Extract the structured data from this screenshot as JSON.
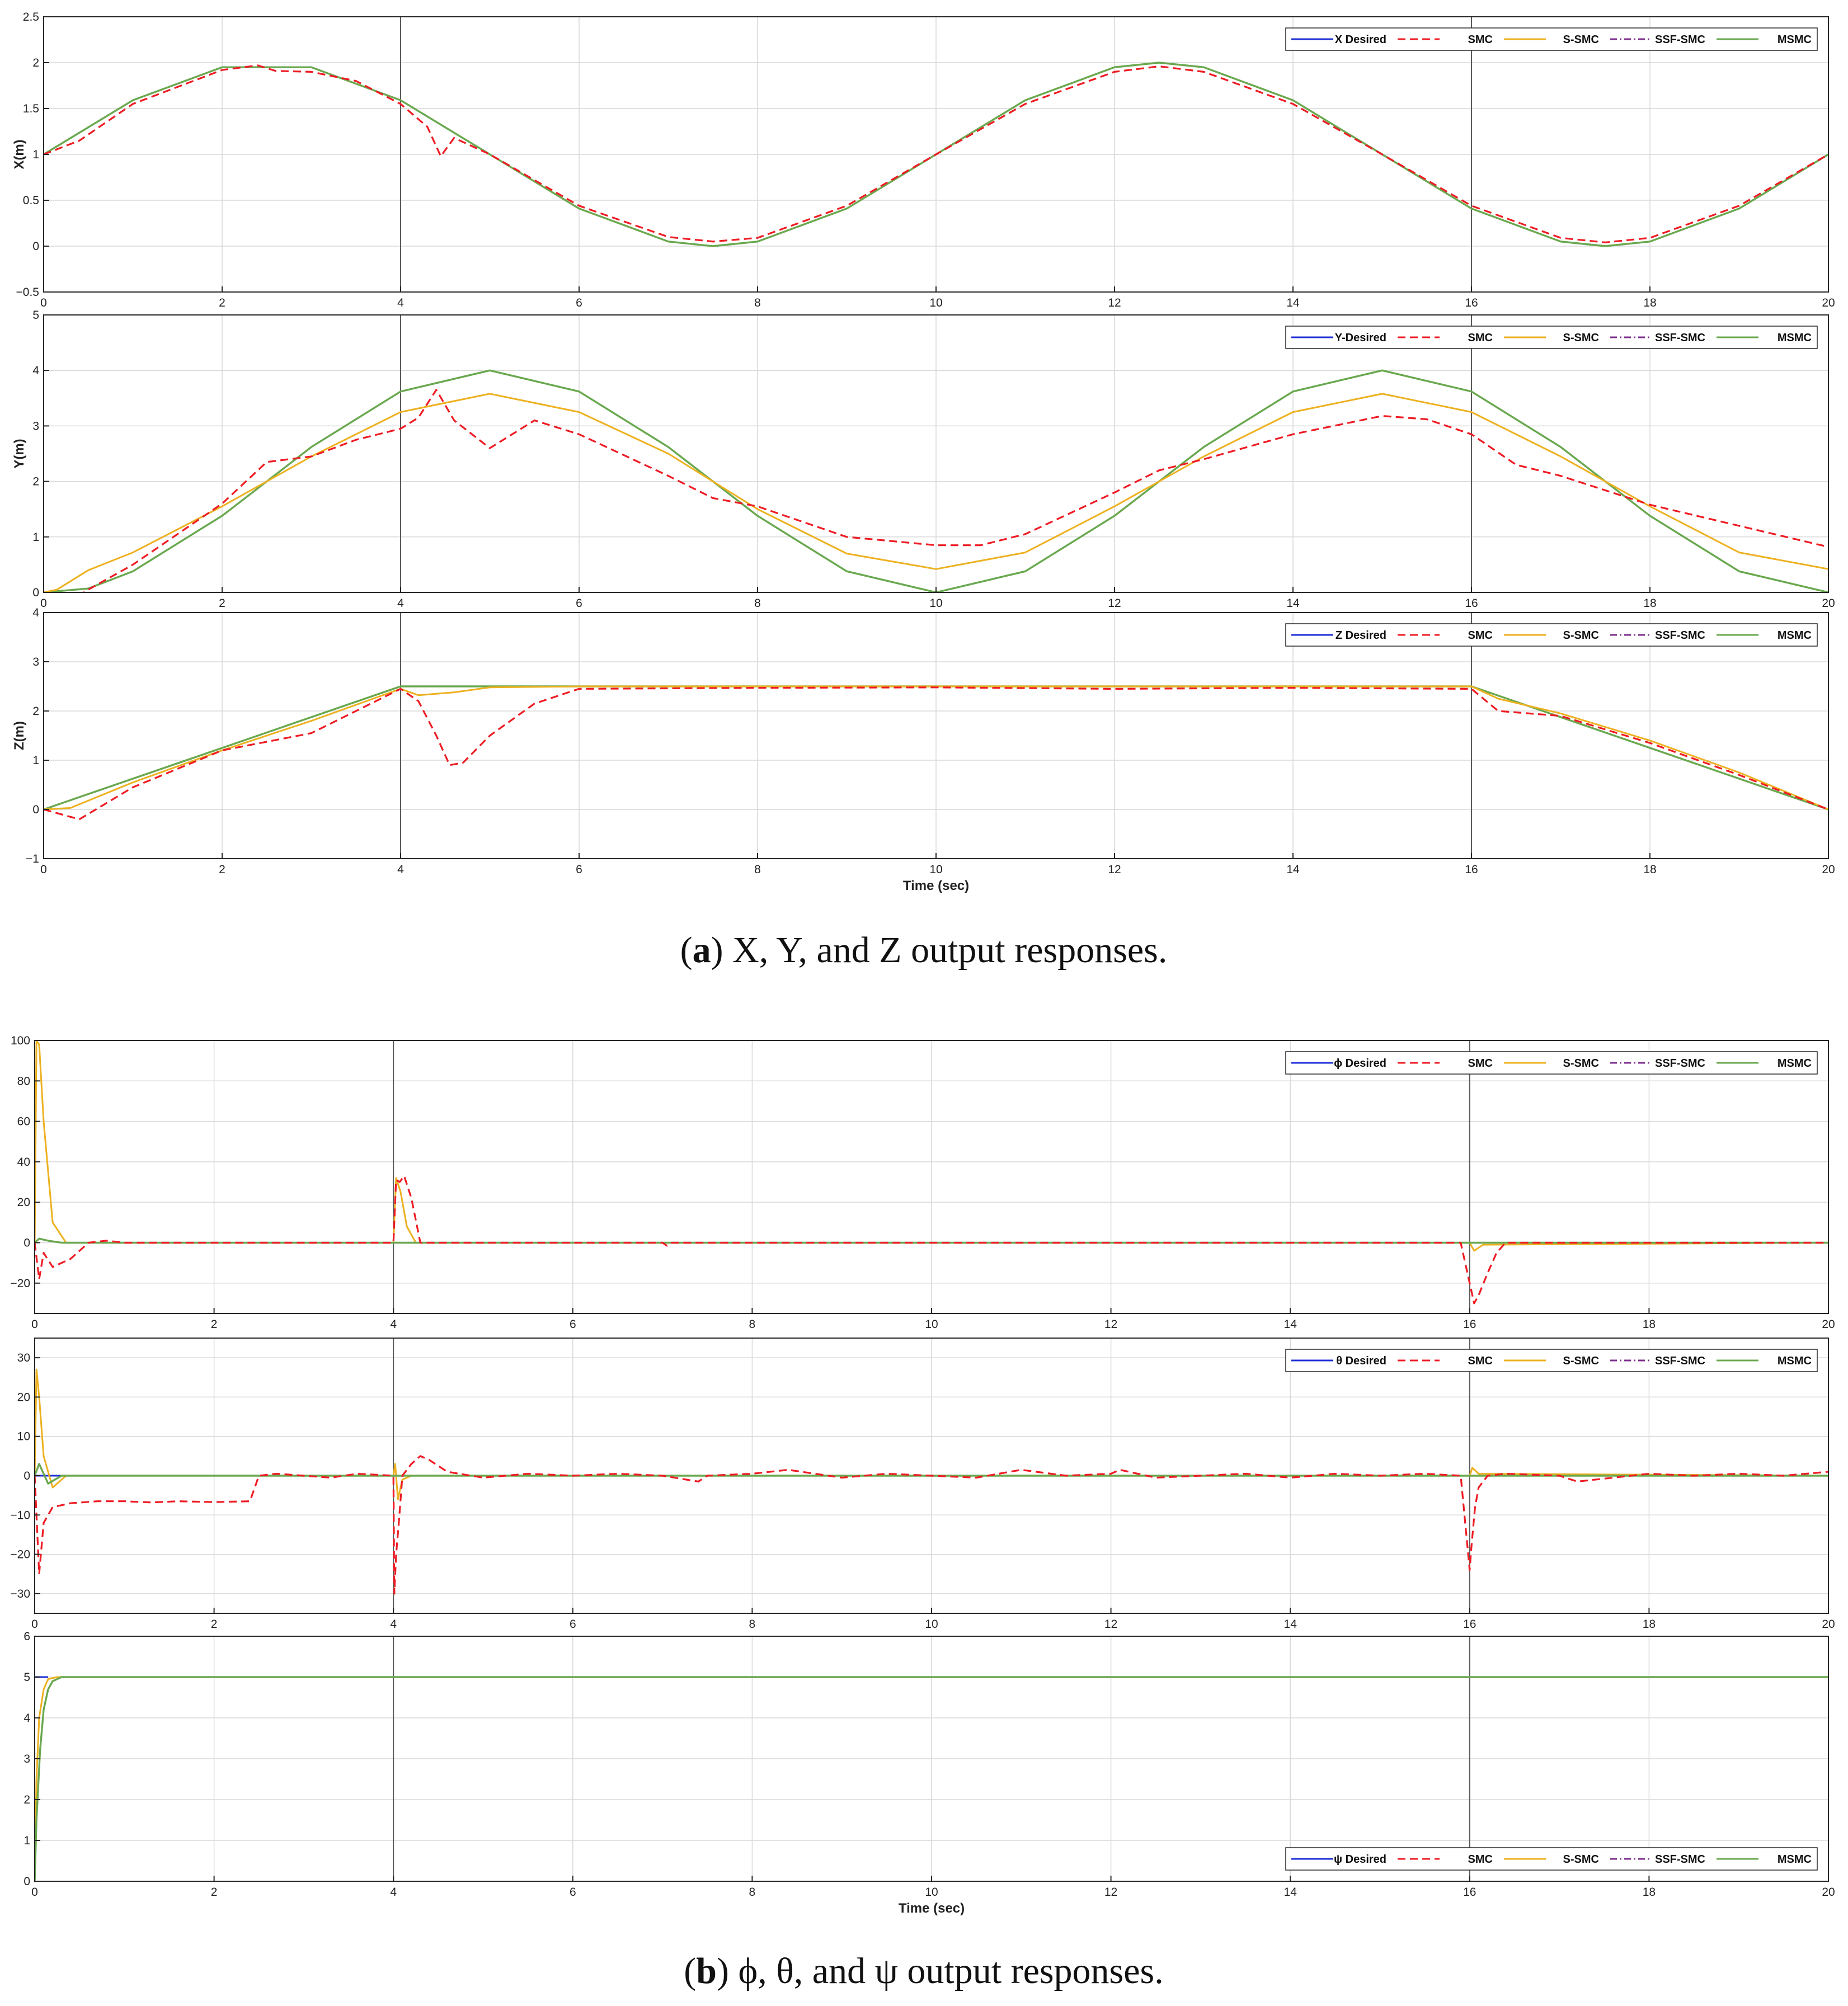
{
  "captions": {
    "a": {
      "letter": "a",
      "text": "X, Y, and Z output responses."
    },
    "b": {
      "letter": "b",
      "text": "ϕ, θ, and ψ output responses."
    }
  },
  "colors": {
    "desired": "#1f2fd6",
    "smc": "#ee1c24",
    "s_smc": "#edb120",
    "ssf_smc": "#7e2f8e",
    "msmc": "#6aa84f"
  },
  "chart_data": [
    {
      "type": "line",
      "id": "x",
      "ylabel": "X(m)",
      "xlabel": "",
      "xlim": [
        0,
        20
      ],
      "ylim": [
        -0.5,
        2.5
      ],
      "xticks": [
        0,
        2,
        4,
        6,
        8,
        10,
        12,
        14,
        16,
        18,
        20
      ],
      "yticks": [
        -0.5,
        0,
        0.5,
        1,
        1.5,
        2,
        2.5
      ],
      "ytick_labels": [
        "−0.5",
        "0",
        "0.5",
        "1",
        "1.5",
        "2",
        "2.5"
      ],
      "legend": [
        "X Desired",
        "SMC",
        "S-SMC",
        "SSF-SMC",
        "MSMC"
      ],
      "legend_position": "top-right",
      "grid": true,
      "series": [
        {
          "key": "msmc",
          "x": [
            0,
            1,
            2,
            3,
            4,
            5,
            6,
            7,
            7.5,
            8,
            9,
            10,
            11,
            12,
            12.5,
            13,
            14,
            15,
            16,
            17,
            17.5,
            18,
            19,
            20
          ],
          "y": [
            1,
            1.59,
            1.95,
            1.95,
            1.59,
            1,
            0.41,
            0.05,
            0,
            0.05,
            0.41,
            1,
            1.59,
            1.95,
            2,
            1.95,
            1.59,
            1,
            0.41,
            0.05,
            0,
            0.05,
            0.41,
            1
          ]
        },
        {
          "key": "smc",
          "x": [
            0,
            0.4,
            1,
            2,
            2.4,
            2.6,
            3,
            3.5,
            4,
            4.3,
            4.45,
            4.6,
            5,
            6,
            7,
            7.5,
            8,
            9,
            10,
            11,
            12,
            12.5,
            13,
            14,
            15,
            16,
            17,
            17.5,
            18,
            19,
            20
          ],
          "y": [
            1,
            1.15,
            1.55,
            1.92,
            1.97,
            1.91,
            1.9,
            1.8,
            1.55,
            1.3,
            0.98,
            1.18,
            1,
            0.44,
            0.1,
            0.05,
            0.09,
            0.44,
            1,
            1.55,
            1.9,
            1.96,
            1.9,
            1.55,
            1,
            0.44,
            0.09,
            0.04,
            0.09,
            0.44,
            1
          ]
        }
      ]
    },
    {
      "type": "line",
      "id": "y",
      "ylabel": "Y(m)",
      "xlabel": "",
      "xlim": [
        0,
        20
      ],
      "ylim": [
        0,
        5
      ],
      "xticks": [
        0,
        2,
        4,
        6,
        8,
        10,
        12,
        14,
        16,
        18,
        20
      ],
      "yticks": [
        0,
        1,
        2,
        3,
        4,
        5
      ],
      "ytick_labels": [
        "0",
        "1",
        "2",
        "3",
        "4",
        "5"
      ],
      "legend": [
        "Y-Desired",
        "SMC",
        "S-SMC",
        "SSF-SMC",
        "MSMC"
      ],
      "legend_position": "top-right",
      "grid": true,
      "series": [
        {
          "key": "msmc",
          "x": [
            0,
            0.5,
            1,
            2,
            3,
            4,
            5,
            6,
            7,
            8,
            9,
            10,
            11,
            12,
            13,
            14,
            15,
            16,
            17,
            18,
            19,
            20
          ],
          "y": [
            0,
            0.07,
            0.38,
            1.38,
            2.62,
            3.62,
            4,
            3.62,
            2.62,
            1.38,
            0.38,
            0,
            0.38,
            1.38,
            2.62,
            3.62,
            4,
            3.62,
            2.62,
            1.38,
            0.38,
            0
          ]
        },
        {
          "key": "s_smc",
          "x": [
            0,
            0.15,
            0.5,
            1,
            2,
            3,
            4,
            5,
            6,
            7,
            8,
            9,
            10,
            11,
            12,
            13,
            14,
            15,
            16,
            17,
            18,
            19,
            20
          ],
          "y": [
            0,
            0.05,
            0.4,
            0.72,
            1.55,
            2.45,
            3.25,
            3.58,
            3.25,
            2.5,
            1.5,
            0.7,
            0.42,
            0.72,
            1.55,
            2.45,
            3.25,
            3.58,
            3.25,
            2.45,
            1.55,
            0.72,
            0.42
          ]
        },
        {
          "key": "smc",
          "x": [
            0,
            0.3,
            0.5,
            1,
            2,
            2.5,
            3,
            3.5,
            4,
            4.2,
            4.4,
            4.6,
            5,
            5.5,
            6,
            7,
            7.5,
            8,
            9,
            10,
            10.5,
            11,
            12,
            12.5,
            13,
            14,
            15,
            15.5,
            16,
            16.5,
            17,
            18,
            19,
            20
          ],
          "y": [
            0,
            -0.15,
            0.05,
            0.5,
            1.6,
            2.35,
            2.45,
            2.75,
            2.95,
            3.15,
            3.65,
            3.1,
            2.6,
            3.1,
            2.85,
            2.1,
            1.7,
            1.55,
            1.0,
            0.85,
            0.85,
            1.05,
            1.8,
            2.2,
            2.4,
            2.85,
            3.18,
            3.12,
            2.85,
            2.3,
            2.1,
            1.58,
            1.2,
            0.82
          ]
        }
      ]
    },
    {
      "type": "line",
      "id": "z",
      "ylabel": "Z(m)",
      "xlabel": "Time (sec)",
      "xlim": [
        0,
        20
      ],
      "ylim": [
        -1,
        4
      ],
      "xticks": [
        0,
        2,
        4,
        6,
        8,
        10,
        12,
        14,
        16,
        18,
        20
      ],
      "yticks": [
        -1,
        0,
        1,
        2,
        3,
        4
      ],
      "ytick_labels": [
        "−1",
        "0",
        "1",
        "2",
        "3",
        "4"
      ],
      "legend": [
        "Z Desired",
        "SMC",
        "S-SMC",
        "SSF-SMC",
        "MSMC"
      ],
      "legend_position": "top-right",
      "grid": true,
      "series": [
        {
          "key": "msmc",
          "x": [
            0,
            4,
            16,
            20
          ],
          "y": [
            0,
            2.5,
            2.5,
            0
          ]
        },
        {
          "key": "s_smc",
          "x": [
            0,
            0.3,
            1,
            2,
            3,
            4,
            4.2,
            4.6,
            5,
            6,
            16,
            16.3,
            17,
            18,
            19,
            20
          ],
          "y": [
            0,
            0.03,
            0.55,
            1.2,
            1.8,
            2.45,
            2.32,
            2.38,
            2.48,
            2.5,
            2.5,
            2.25,
            1.95,
            1.4,
            0.75,
            0
          ]
        },
        {
          "key": "smc",
          "x": [
            0,
            0.4,
            1,
            2,
            3,
            4,
            4.2,
            4.4,
            4.55,
            4.7,
            5,
            5.5,
            6,
            8,
            10,
            12,
            14,
            16,
            16.3,
            17,
            18,
            19,
            20
          ],
          "y": [
            0,
            -0.2,
            0.45,
            1.2,
            1.55,
            2.45,
            2.2,
            1.5,
            0.9,
            0.95,
            1.5,
            2.15,
            2.45,
            2.47,
            2.48,
            2.45,
            2.47,
            2.45,
            2.0,
            1.9,
            1.35,
            0.7,
            0
          ]
        }
      ]
    },
    {
      "type": "line",
      "id": "phi",
      "ylabel": "",
      "xlabel": "",
      "xlim": [
        0,
        20
      ],
      "ylim": [
        -35,
        100
      ],
      "xticks": [
        0,
        2,
        4,
        6,
        8,
        10,
        12,
        14,
        16,
        18,
        20
      ],
      "yticks": [
        -20,
        0,
        20,
        40,
        60,
        80,
        100
      ],
      "ytick_labels": [
        "−20",
        "0",
        "20",
        "40",
        "60",
        "80",
        "100"
      ],
      "legend": [
        "ϕ Desired",
        "SMC",
        "S-SMC",
        "SSF-SMC",
        "MSMC"
      ],
      "legend_position": "top-right",
      "grid": true,
      "series": [
        {
          "key": "s_smc",
          "x": [
            0,
            0.02,
            0.05,
            0.1,
            0.2,
            0.35,
            4,
            4.03,
            4.08,
            4.15,
            4.25,
            16,
            16.05,
            16.15,
            20
          ],
          "y": [
            0,
            100,
            98,
            60,
            10,
            0,
            0,
            32,
            25,
            8,
            0,
            0,
            -4,
            -1,
            0
          ]
        },
        {
          "key": "msmc",
          "x": [
            0,
            0.05,
            0.15,
            0.3,
            20
          ],
          "y": [
            0,
            2,
            1,
            0,
            0
          ]
        },
        {
          "key": "smc",
          "x": [
            0,
            0.05,
            0.1,
            0.2,
            0.4,
            0.6,
            0.8,
            1,
            2,
            4,
            4.03,
            4.07,
            4.12,
            4.2,
            4.3,
            4.5,
            7,
            7.05,
            7.1,
            11,
            15.9,
            16,
            16.05,
            16.1,
            16.2,
            16.3,
            16.4,
            20
          ],
          "y": [
            0,
            -18,
            -5,
            -12,
            -8,
            0,
            1,
            0,
            0,
            0,
            31,
            30,
            33,
            22,
            0,
            0,
            0,
            -1.5,
            0,
            0,
            0,
            -20,
            -30,
            -26,
            -15,
            -5,
            0,
            0
          ]
        }
      ]
    },
    {
      "type": "line",
      "id": "theta",
      "ylabel": "",
      "xlabel": "",
      "xlim": [
        0,
        20
      ],
      "ylim": [
        -35,
        35
      ],
      "xticks": [
        0,
        2,
        4,
        6,
        8,
        10,
        12,
        14,
        16,
        18,
        20
      ],
      "yticks": [
        -30,
        -20,
        -10,
        0,
        10,
        20,
        30
      ],
      "ytick_labels": [
        "−30",
        "−20",
        "−10",
        "0",
        "10",
        "20",
        "30"
      ],
      "legend": [
        "θ Desired",
        "SMC",
        "S-SMC",
        "SSF-SMC",
        "MSMC"
      ],
      "legend_position": "top-right",
      "grid": true,
      "series": [
        {
          "key": "desired",
          "x": [
            0,
            20
          ],
          "y": [
            0,
            0
          ]
        },
        {
          "key": "s_smc",
          "x": [
            0,
            0.02,
            0.05,
            0.1,
            0.2,
            0.35,
            4,
            4.02,
            4.05,
            4.1,
            4.2,
            16,
            16.03,
            16.1,
            20
          ],
          "y": [
            0,
            27,
            20,
            5,
            -3,
            0,
            0,
            3,
            -6,
            -1,
            0,
            0,
            2,
            0.5,
            0
          ]
        },
        {
          "key": "msmc",
          "x": [
            0,
            0.05,
            0.15,
            0.3,
            20
          ],
          "y": [
            0,
            3,
            -2,
            0,
            0
          ]
        },
        {
          "key": "smc",
          "x": [
            0,
            0.05,
            0.1,
            0.2,
            0.4,
            0.7,
            1,
            1.3,
            1.6,
            2,
            2.4,
            2.5,
            2.7,
            3,
            3.3,
            3.6,
            4,
            4.01,
            4.03,
            4.06,
            4.1,
            4.2,
            4.3,
            4.4,
            4.6,
            5,
            5.5,
            6,
            6.5,
            7,
            7.4,
            7.5,
            8,
            8.4,
            9,
            9.5,
            10,
            10.5,
            11,
            11.5,
            12,
            12.1,
            12.5,
            13,
            13.5,
            14,
            14.5,
            15,
            15.5,
            15.9,
            16,
            16.02,
            16.06,
            16.1,
            16.2,
            16.4,
            17,
            17.2,
            18,
            18.5,
            19,
            19.5,
            20
          ],
          "y": [
            0,
            -25,
            -12,
            -8,
            -7,
            -6.5,
            -6.5,
            -6.8,
            -6.5,
            -6.7,
            -6.5,
            0,
            0.5,
            0,
            -0.5,
            0.5,
            0,
            -30,
            -20,
            -12,
            0,
            3,
            5,
            4,
            1,
            -0.5,
            0.5,
            0,
            0.5,
            0,
            -1.5,
            0,
            0.5,
            1.5,
            -0.5,
            0.5,
            0,
            -0.5,
            1.5,
            0,
            0.5,
            1.5,
            -0.5,
            0,
            0.5,
            -0.5,
            0.5,
            0,
            0.5,
            0,
            -24,
            -18,
            -8,
            -3,
            0,
            0.5,
            0,
            -1.5,
            0.5,
            0,
            0.5,
            0,
            1
          ]
        }
      ]
    },
    {
      "type": "line",
      "id": "psi",
      "ylabel": "",
      "xlabel": "Time (sec)",
      "xlim": [
        0,
        20
      ],
      "ylim": [
        0,
        6
      ],
      "xticks": [
        0,
        2,
        4,
        6,
        8,
        10,
        12,
        14,
        16,
        18,
        20
      ],
      "yticks": [
        0,
        1,
        2,
        3,
        4,
        5,
        6
      ],
      "ytick_labels": [
        "0",
        "1",
        "2",
        "3",
        "4",
        "5",
        "6"
      ],
      "legend": [
        "ψ Desired",
        "SMC",
        "S-SMC",
        "SSF-SMC",
        "MSMC"
      ],
      "legend_position": "bottom-right",
      "grid": true,
      "series": [
        {
          "key": "desired",
          "x": [
            0,
            0.15
          ],
          "y": [
            5,
            5
          ]
        },
        {
          "key": "s_smc",
          "x": [
            0,
            0.02,
            0.05,
            0.1,
            0.15,
            0.25,
            20
          ],
          "y": [
            0,
            2.5,
            4,
            4.7,
            4.95,
            5,
            5
          ]
        },
        {
          "key": "msmc",
          "x": [
            0,
            0.02,
            0.06,
            0.1,
            0.15,
            0.2,
            0.3,
            20
          ],
          "y": [
            0,
            1.5,
            3.2,
            4.2,
            4.7,
            4.9,
            5,
            5
          ]
        }
      ]
    }
  ]
}
